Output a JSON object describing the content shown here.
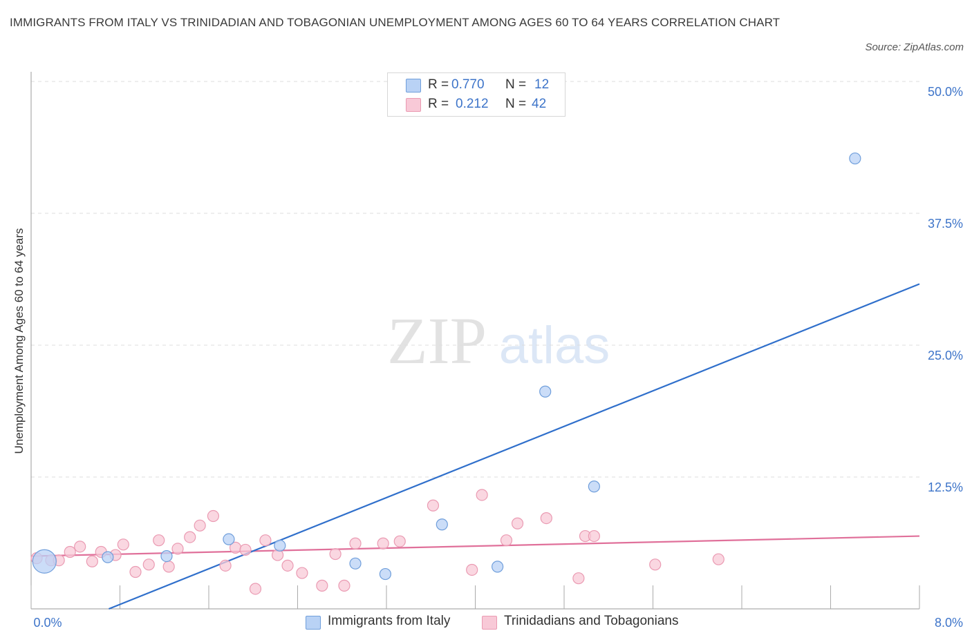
{
  "title": "IMMIGRANTS FROM ITALY VS TRINIDADIAN AND TOBAGONIAN UNEMPLOYMENT AMONG AGES 60 TO 64 YEARS CORRELATION CHART",
  "source": "Source: ZipAtlas.com",
  "watermark": {
    "zip": "ZIP",
    "atlas": "atlas"
  },
  "legend": {
    "series1": {
      "r_label": "R =",
      "r_value": "0.770",
      "n_label": "N =",
      "n_value": "12"
    },
    "series2": {
      "r_label": "R =",
      "r_value": "0.212",
      "n_label": "N =",
      "n_value": "42"
    }
  },
  "colors": {
    "series1_fill": "#b9d2f5",
    "series1_stroke": "#6f9edb",
    "series1_line": "#2f6fcb",
    "series2_fill": "#f8c9d7",
    "series2_stroke": "#ea9ab2",
    "series2_line": "#e0709a",
    "axis_label": "#3d74c9",
    "grid": "#dddddd"
  },
  "chart_data": {
    "type": "scatter",
    "title": "IMMIGRANTS FROM ITALY VS TRINIDADIAN AND TOBAGONIAN UNEMPLOYMENT AMONG AGES 60 TO 64 YEARS CORRELATION CHART",
    "xlabel": "",
    "ylabel": "Unemployment Among Ages 60 to 64 years",
    "xlim": [
      0,
      8
    ],
    "ylim": [
      0,
      50
    ],
    "x_tick_labels": [
      {
        "value": 0,
        "label": "0.0%"
      },
      {
        "value": 8,
        "label": "8.0%"
      }
    ],
    "y_tick_labels": [
      {
        "value": 12.5,
        "label": "12.5%"
      },
      {
        "value": 25,
        "label": "25.0%"
      },
      {
        "value": 37.5,
        "label": "37.5%"
      },
      {
        "value": 50,
        "label": "50.0%"
      }
    ],
    "series": [
      {
        "name": "Immigrants from Italy",
        "r": 0.77,
        "n": 12,
        "points": [
          {
            "x": 0.12,
            "y": 4.5,
            "big": true
          },
          {
            "x": 0.69,
            "y": 4.9
          },
          {
            "x": 1.22,
            "y": 5.0
          },
          {
            "x": 1.78,
            "y": 6.6
          },
          {
            "x": 2.24,
            "y": 6.0
          },
          {
            "x": 2.92,
            "y": 4.3
          },
          {
            "x": 3.19,
            "y": 3.3
          },
          {
            "x": 3.7,
            "y": 8.0
          },
          {
            "x": 4.2,
            "y": 4.0
          },
          {
            "x": 4.63,
            "y": 20.6
          },
          {
            "x": 5.07,
            "y": 11.6
          },
          {
            "x": 7.42,
            "y": 42.7
          }
        ],
        "trend": {
          "x1": 0.7,
          "y1": 0.0,
          "x2": 8.0,
          "y2": 30.8
        }
      },
      {
        "name": "Trinidadians and Tobagonians",
        "r": 0.212,
        "n": 42,
        "points": [
          {
            "x": 0.05,
            "y": 4.8
          },
          {
            "x": 0.18,
            "y": 4.6
          },
          {
            "x": 0.25,
            "y": 4.6
          },
          {
            "x": 0.35,
            "y": 5.4
          },
          {
            "x": 0.44,
            "y": 5.9
          },
          {
            "x": 0.55,
            "y": 4.5
          },
          {
            "x": 0.63,
            "y": 5.4
          },
          {
            "x": 0.76,
            "y": 5.1
          },
          {
            "x": 0.83,
            "y": 6.1
          },
          {
            "x": 0.94,
            "y": 3.5
          },
          {
            "x": 1.06,
            "y": 4.2
          },
          {
            "x": 1.15,
            "y": 6.5
          },
          {
            "x": 1.24,
            "y": 4.0
          },
          {
            "x": 1.32,
            "y": 5.7
          },
          {
            "x": 1.43,
            "y": 6.8
          },
          {
            "x": 1.52,
            "y": 7.9
          },
          {
            "x": 1.64,
            "y": 8.8
          },
          {
            "x": 1.75,
            "y": 4.1
          },
          {
            "x": 1.84,
            "y": 5.8
          },
          {
            "x": 1.93,
            "y": 5.6
          },
          {
            "x": 2.02,
            "y": 1.9
          },
          {
            "x": 2.11,
            "y": 6.5
          },
          {
            "x": 2.22,
            "y": 5.1
          },
          {
            "x": 2.31,
            "y": 4.1
          },
          {
            "x": 2.44,
            "y": 3.4
          },
          {
            "x": 2.62,
            "y": 2.2
          },
          {
            "x": 2.74,
            "y": 5.2
          },
          {
            "x": 2.82,
            "y": 2.2
          },
          {
            "x": 2.92,
            "y": 6.2
          },
          {
            "x": 3.17,
            "y": 6.2
          },
          {
            "x": 3.32,
            "y": 6.4
          },
          {
            "x": 3.62,
            "y": 9.8
          },
          {
            "x": 3.97,
            "y": 3.7
          },
          {
            "x": 4.06,
            "y": 10.8
          },
          {
            "x": 4.28,
            "y": 6.5
          },
          {
            "x": 4.38,
            "y": 8.1
          },
          {
            "x": 4.64,
            "y": 8.6
          },
          {
            "x": 4.93,
            "y": 2.9
          },
          {
            "x": 4.99,
            "y": 6.9
          },
          {
            "x": 5.07,
            "y": 6.9
          },
          {
            "x": 5.62,
            "y": 4.2
          },
          {
            "x": 6.19,
            "y": 4.7
          }
        ],
        "trend": {
          "x1": 0.0,
          "y1": 5.0,
          "x2": 8.0,
          "y2": 6.9
        }
      }
    ]
  }
}
